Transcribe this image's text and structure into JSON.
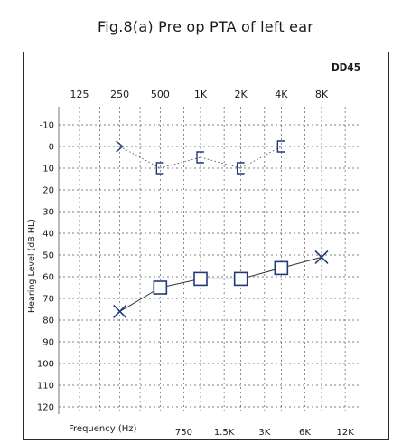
{
  "caption": "Fig.8(a) Pre op PTA of left ear",
  "chart_data": {
    "type": "scatter",
    "title": "",
    "corner_label": "DD45",
    "ylabel": "Hearing Level (dB HL)",
    "xlabel": "Frequency (Hz)",
    "x_top_ticks": [
      "125",
      "250",
      "500",
      "1K",
      "2K",
      "4K",
      "8K"
    ],
    "x_bottom_ticks": [
      "750",
      "1.5K",
      "3K",
      "6K",
      "12K"
    ],
    "y_ticks": [
      -10,
      0,
      10,
      20,
      30,
      40,
      50,
      60,
      70,
      80,
      90,
      100,
      110,
      120
    ],
    "ylim": [
      -10,
      120
    ],
    "y_inverted": true,
    "x_scale": "log",
    "grid": true,
    "series": [
      {
        "name": "",
        "marker": "x",
        "connected": "solid",
        "color": "#1f3a7a",
        "x": [
          250,
          8000
        ],
        "y": [
          76,
          51
        ]
      },
      {
        "name": "",
        "marker": "square",
        "connected": "solid",
        "color": "#1f3a7a",
        "x": [
          500,
          1000,
          2000,
          4000
        ],
        "y": [
          65,
          61,
          61,
          56
        ]
      },
      {
        "name": "",
        "marker": "bracket",
        "connected": "dotted",
        "color": "#1f3a7a",
        "x": [
          250,
          500,
          1000,
          2000,
          4000
        ],
        "y": [
          0,
          10,
          5,
          10,
          0
        ]
      }
    ]
  }
}
